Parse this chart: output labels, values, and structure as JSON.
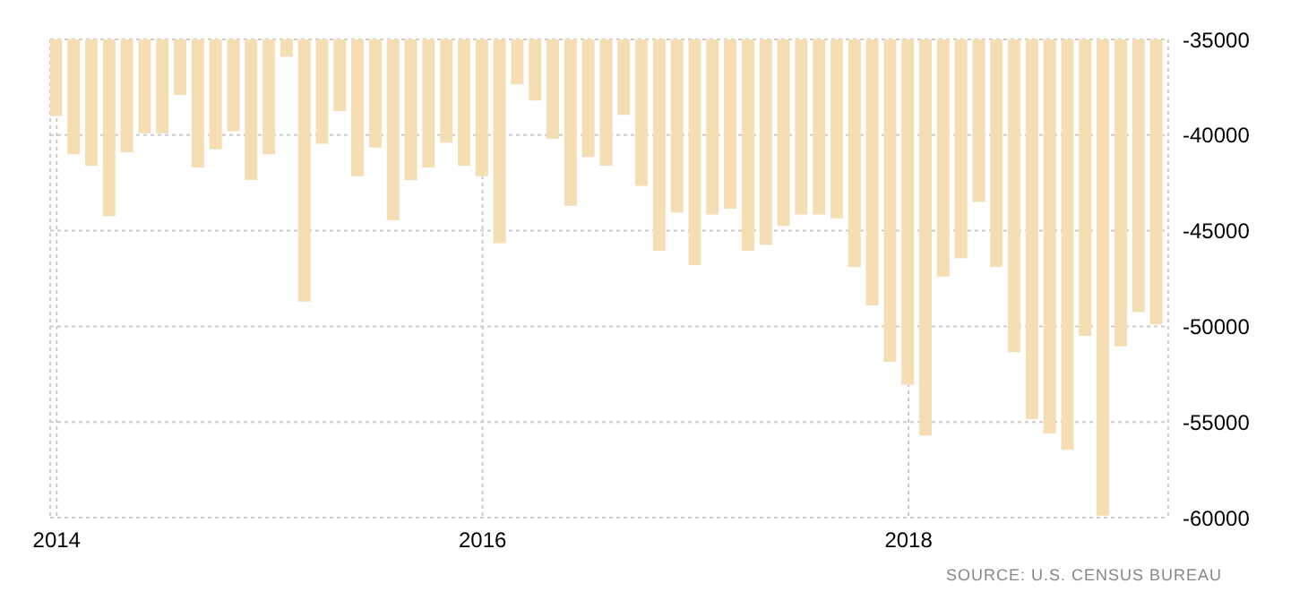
{
  "chart_data": {
    "type": "bar",
    "color": "#f5deb3",
    "x": [
      "2014-01",
      "2014-02",
      "2014-03",
      "2014-04",
      "2014-05",
      "2014-06",
      "2014-07",
      "2014-08",
      "2014-09",
      "2014-10",
      "2014-11",
      "2014-12",
      "2015-01",
      "2015-02",
      "2015-03",
      "2015-04",
      "2015-05",
      "2015-06",
      "2015-07",
      "2015-08",
      "2015-09",
      "2015-10",
      "2015-11",
      "2015-12",
      "2016-01",
      "2016-02",
      "2016-03",
      "2016-04",
      "2016-05",
      "2016-06",
      "2016-07",
      "2016-08",
      "2016-09",
      "2016-10",
      "2016-11",
      "2016-12",
      "2017-01",
      "2017-02",
      "2017-03",
      "2017-04",
      "2017-05",
      "2017-06",
      "2017-07",
      "2017-08",
      "2017-09",
      "2017-10",
      "2017-11",
      "2017-12",
      "2018-01",
      "2018-02",
      "2018-03",
      "2018-04",
      "2018-05",
      "2018-06",
      "2018-07",
      "2018-08",
      "2018-09",
      "2018-10",
      "2018-11",
      "2018-12",
      "2019-01",
      "2019-02",
      "2019-03"
    ],
    "values": [
      -39000,
      -41000,
      -41600,
      -44250,
      -40900,
      -39900,
      -39900,
      -37900,
      -41700,
      -40750,
      -39800,
      -42350,
      -41000,
      -35900,
      -48700,
      -40450,
      -38750,
      -42150,
      -40650,
      -44450,
      -42350,
      -41700,
      -40400,
      -41600,
      -42150,
      -45650,
      -37350,
      -38200,
      -40200,
      -43700,
      -41150,
      -41600,
      -38950,
      -42650,
      -46050,
      -44050,
      -46800,
      -44150,
      -43850,
      -46050,
      -45750,
      -44750,
      -44150,
      -44150,
      -44350,
      -46900,
      -48900,
      -51850,
      -53050,
      -55700,
      -47400,
      -46450,
      -43500,
      -46900,
      -51350,
      -54850,
      -55600,
      -56450,
      -50500,
      -59900,
      -51050,
      -49250,
      -49900
    ],
    "xlim": [
      "2013-12-20",
      "2019-03-20"
    ],
    "xticks": [
      "2014",
      "2016",
      "2018"
    ],
    "ylim": [
      -60000,
      -35000
    ],
    "yticks": [
      -60000,
      -55000,
      -50000,
      -45000,
      -40000,
      -35000
    ],
    "grid": true,
    "annotations": [
      "SOURCE: U.S. CENSUS BUREAU"
    ]
  }
}
